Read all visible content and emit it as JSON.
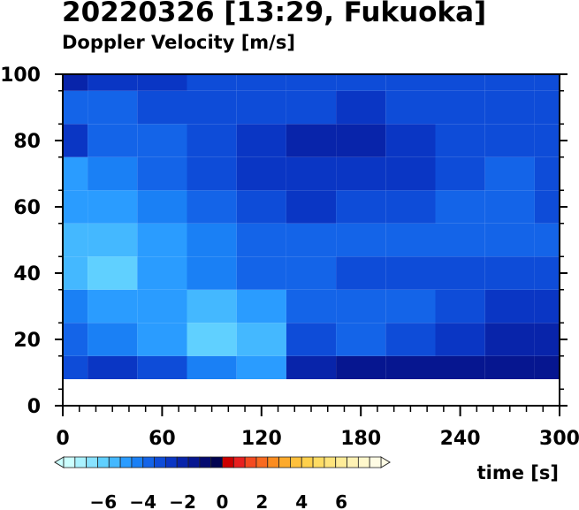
{
  "header": {
    "title": "20220326 [13:29, Fukuoka]",
    "subtitle": "Doppler Velocity [m/s]"
  },
  "chart_data": {
    "type": "heatmap",
    "title": "20220326 [13:29, Fukuoka]",
    "subtitle": "Doppler Velocity [m/s]",
    "xlabel": "time [s]",
    "ylabel": "",
    "xlim": [
      0,
      300
    ],
    "ylim": [
      0,
      100
    ],
    "xticks": [
      0,
      60,
      120,
      180,
      240,
      300
    ],
    "yticks": [
      0,
      20,
      40,
      60,
      80,
      100
    ],
    "data_height_range": [
      8,
      100
    ],
    "time_bins": [
      0,
      30,
      60,
      90,
      120,
      150,
      180,
      210,
      240,
      270,
      300
    ],
    "height_bins": [
      10,
      20,
      30,
      40,
      50,
      60,
      70,
      80,
      90,
      100
    ],
    "values": [
      [
        -3.0,
        -2.6,
        -3.4,
        -4.4,
        -4.8,
        -2.2,
        -1.6,
        -1.4,
        -1.6,
        -1.4,
        -1.2
      ],
      [
        -4.0,
        -4.2,
        -4.8,
        -5.8,
        -5.6,
        -3.4,
        -3.6,
        -3.0,
        -2.4,
        -2.2,
        -1.8
      ],
      [
        -4.2,
        -4.6,
        -5.0,
        -5.6,
        -4.8,
        -3.6,
        -3.8,
        -3.6,
        -3.0,
        -2.8,
        -2.6
      ],
      [
        -5.6,
        -5.8,
        -5.0,
        -4.2,
        -4.0,
        -3.6,
        -3.4,
        -3.2,
        -3.4,
        -3.2,
        -3.4
      ],
      [
        -5.4,
        -5.2,
        -4.6,
        -4.2,
        -4.0,
        -3.8,
        -3.6,
        -3.8,
        -3.6,
        -3.8,
        -3.6
      ],
      [
        -5.0,
        -4.8,
        -4.4,
        -3.8,
        -3.4,
        -2.4,
        -3.2,
        -3.2,
        -3.6,
        -3.8,
        -3.4
      ],
      [
        -4.6,
        -4.2,
        -4.0,
        -3.4,
        -2.8,
        -2.6,
        -2.4,
        -2.6,
        -3.2,
        -3.6,
        -3.4
      ],
      [
        -2.4,
        -3.6,
        -3.8,
        -3.4,
        -2.6,
        -2.0,
        -1.8,
        -2.6,
        -3.0,
        -3.2,
        -3.0
      ],
      [
        -3.6,
        -3.6,
        -3.2,
        -3.4,
        -3.4,
        -3.0,
        -2.4,
        -3.0,
        -3.0,
        -3.2,
        -3.0
      ],
      [
        -2.0,
        -2.6,
        -2.8,
        -3.0,
        -3.0,
        -3.2,
        -3.0,
        -3.2,
        -3.0,
        -3.2,
        -3.0
      ]
    ],
    "colorbar": {
      "range": [
        -8,
        8
      ],
      "ticks": [
        -6,
        -4,
        -2,
        0,
        2,
        4,
        6
      ],
      "tick_labels": [
        "−6",
        "−4",
        "−2",
        "0",
        "2",
        "4",
        "6"
      ],
      "extend": "both",
      "colors": [
        "#ccffff",
        "#aaf2ff",
        "#88e2ff",
        "#60d0ff",
        "#44b8ff",
        "#2a9cff",
        "#1a80f5",
        "#1464e8",
        "#0e4cd8",
        "#0a36c4",
        "#0824aa",
        "#061690",
        "#040a70",
        "#020450",
        "#cc0000",
        "#e82020",
        "#f44a20",
        "#f86a20",
        "#fb8c20",
        "#fdaa2c",
        "#fec03c",
        "#fed04c",
        "#fedc64",
        "#fee47c",
        "#feec98",
        "#fef2b4",
        "#fff8cc",
        "#fffce4"
      ]
    }
  }
}
